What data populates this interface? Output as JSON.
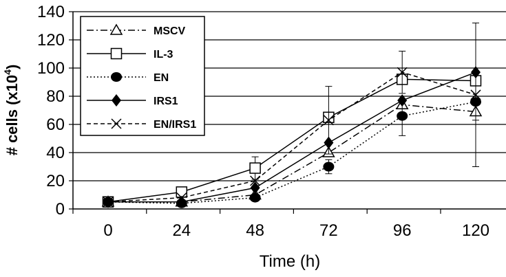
{
  "chart_data": {
    "type": "line",
    "title": "",
    "xlabel": "Time (h)",
    "ylabel": "# cells (x10",
    "ylabel_sup": "4",
    "ylabel_close": ")",
    "x": [
      0,
      24,
      48,
      72,
      96,
      120
    ],
    "x_tick_labels": [
      "0",
      "24",
      "48",
      "72",
      "96",
      "120"
    ],
    "y_tick_labels": [
      "0",
      "20",
      "40",
      "60",
      "80",
      "100",
      "120",
      "140"
    ],
    "ylim": [
      0,
      140
    ],
    "grid": "horizontal",
    "legend_position": "top-left",
    "series": [
      {
        "name": "MSCV",
        "marker": "triangle-open",
        "line": "dash-dot",
        "values": [
          5,
          5,
          10,
          40,
          74,
          69
        ],
        "errors": [
          0,
          0,
          0,
          0,
          0,
          6
        ]
      },
      {
        "name": "IL-3",
        "marker": "square-open",
        "line": "solid",
        "values": [
          5,
          12,
          29,
          65,
          92,
          91
        ],
        "errors": [
          0,
          0,
          8,
          0,
          0,
          0
        ]
      },
      {
        "name": "EN",
        "marker": "circle-filled",
        "line": "dotted",
        "values": [
          5,
          4,
          8,
          30,
          66,
          76
        ],
        "errors": [
          0,
          0,
          0,
          5,
          14,
          0
        ]
      },
      {
        "name": "IRS1",
        "marker": "diamond-filled",
        "line": "solid",
        "values": [
          5,
          5,
          15,
          47,
          77,
          97
        ],
        "errors": [
          0,
          0,
          0,
          0,
          0,
          0
        ]
      },
      {
        "name": "EN/IRS1",
        "marker": "x",
        "line": "dashed",
        "values": [
          5,
          8,
          20,
          63,
          97,
          81
        ],
        "errors": [
          0,
          0,
          0,
          24,
          15,
          51
        ]
      }
    ]
  }
}
